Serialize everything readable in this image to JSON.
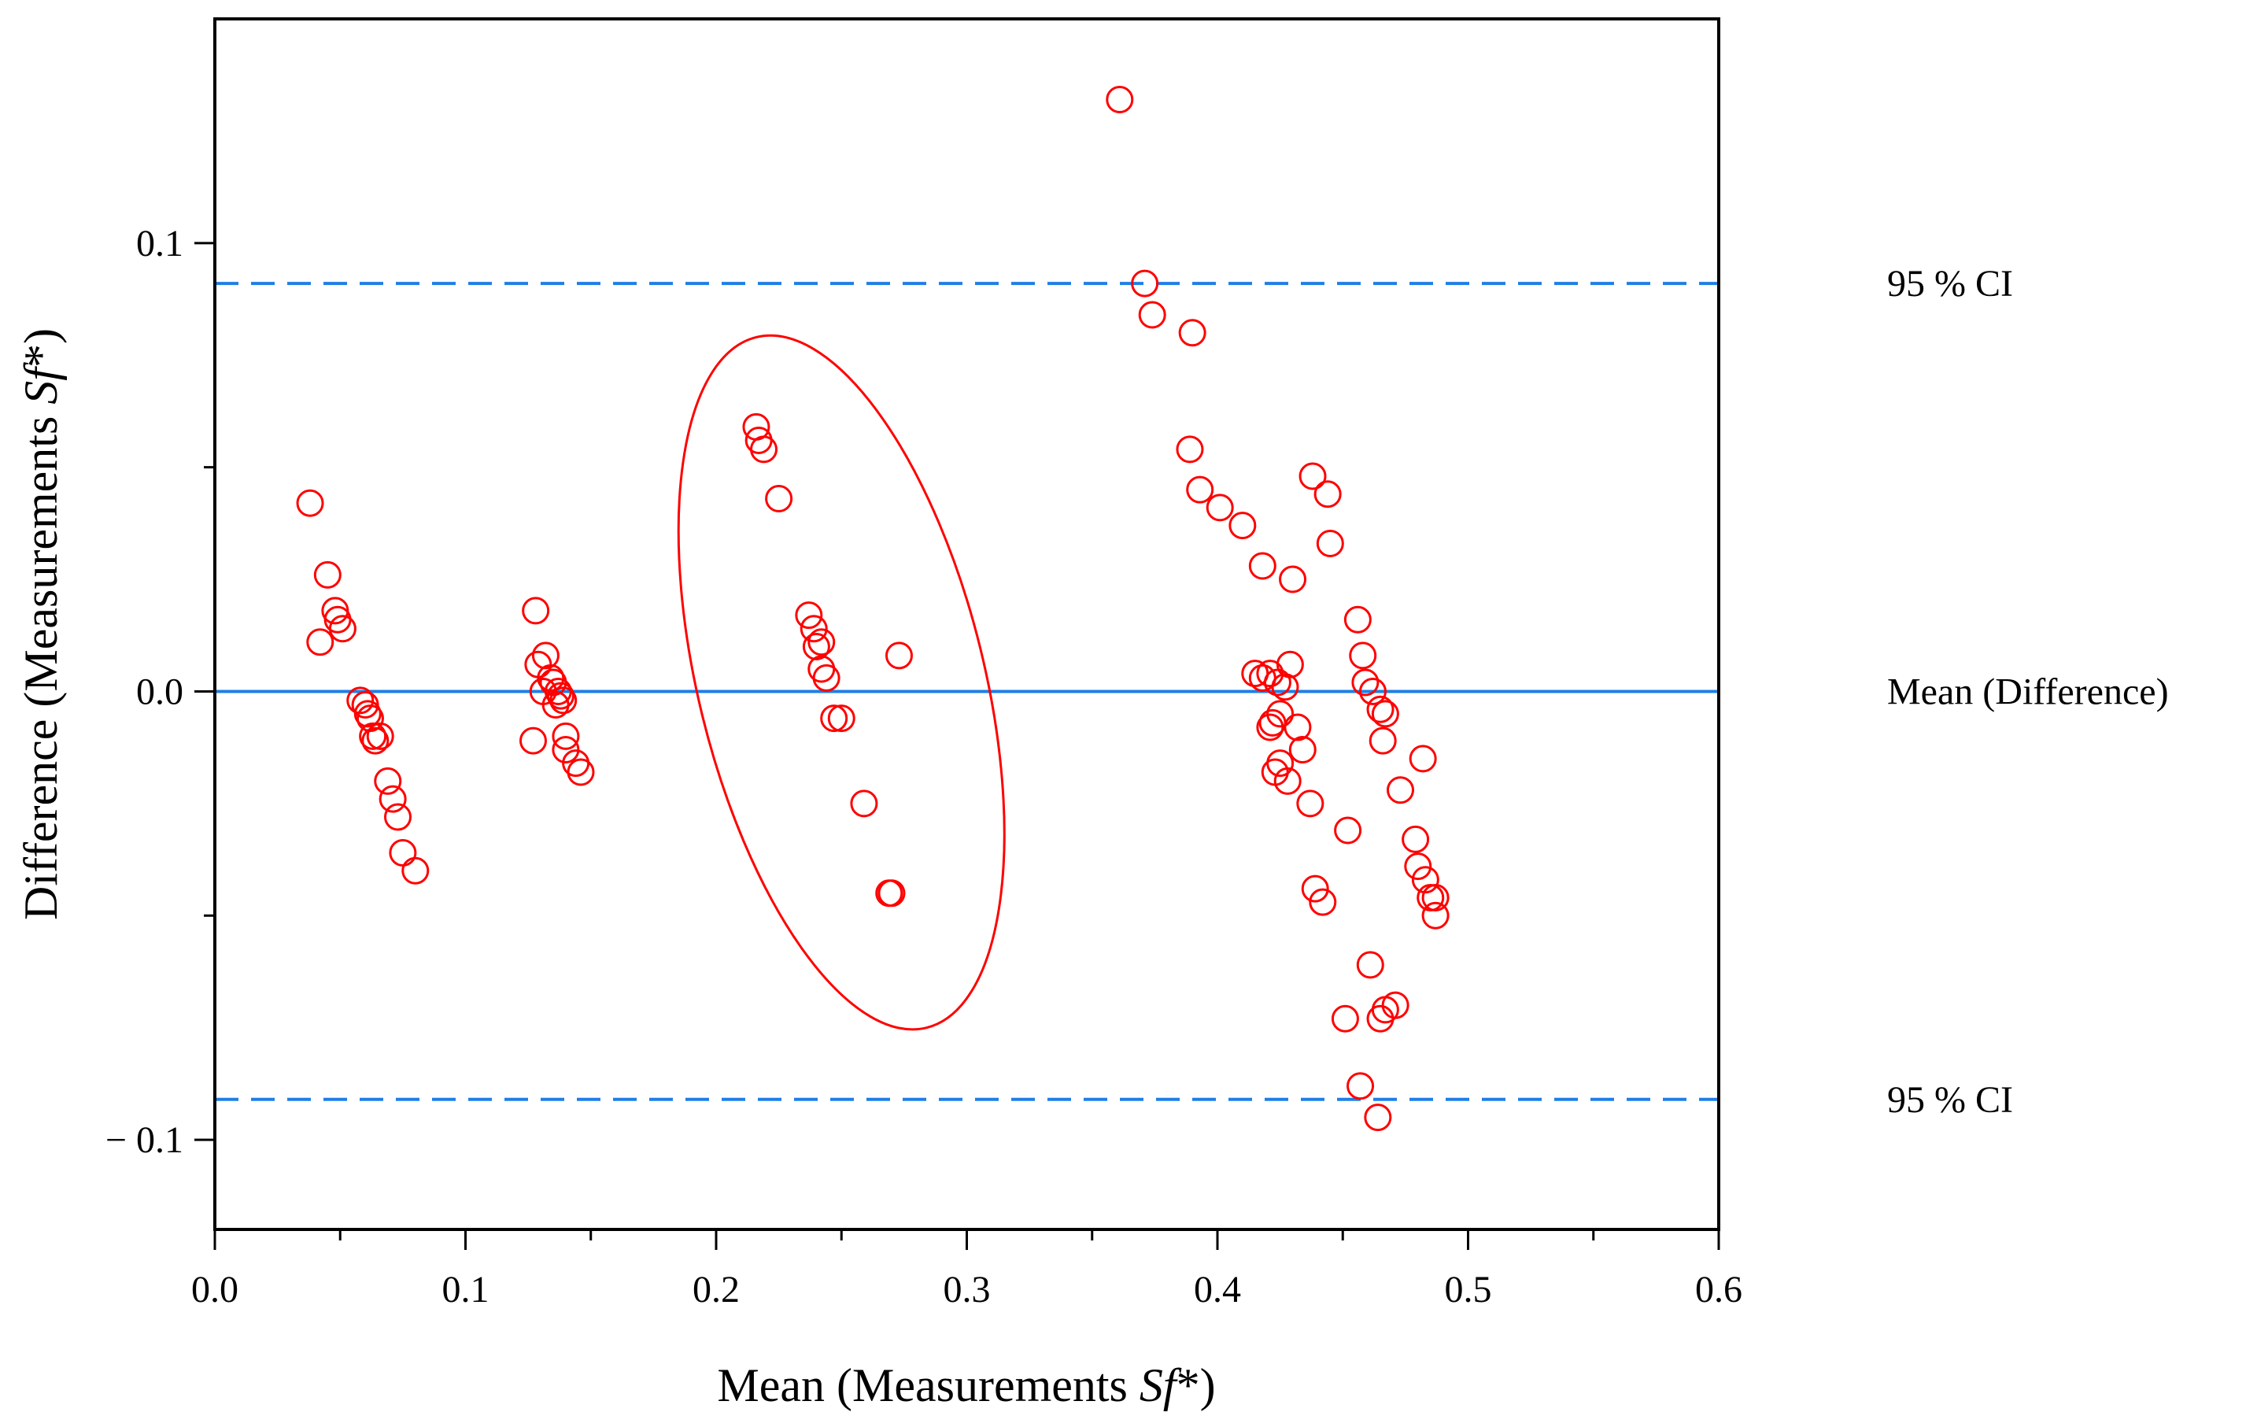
{
  "chart_data": {
    "type": "scatter",
    "title": "",
    "xlabel_prefix": "Mean (Measurements ",
    "xlabel_italic": "Sf",
    "xlabel_suffix": "*)",
    "ylabel_prefix": "Difference (Measurements ",
    "ylabel_italic": "Sf",
    "ylabel_suffix": "*)",
    "xlim": [
      0.0,
      0.6
    ],
    "ylim": [
      -0.12,
      0.15
    ],
    "x_ticks": [
      0.0,
      0.1,
      0.2,
      0.3,
      0.4,
      0.5,
      0.6
    ],
    "x_tick_labels": [
      "0.0",
      "0.1",
      "0.2",
      "0.3",
      "0.4",
      "0.5",
      "0.6"
    ],
    "y_ticks": [
      -0.1,
      0.0,
      0.1
    ],
    "y_tick_labels": [
      "− 0.1",
      "0.0",
      "0.1"
    ],
    "reference_lines": [
      {
        "name": "upper-ci",
        "y": 0.091,
        "style": "dashed",
        "label": "95 % CI"
      },
      {
        "name": "mean",
        "y": 0.0,
        "style": "solid",
        "label": "Mean (Difference)"
      },
      {
        "name": "lower-ci",
        "y": -0.091,
        "style": "dashed",
        "label": "95 % CI"
      }
    ],
    "ellipse_annotation": {
      "center": [
        0.25,
        0.002
      ],
      "points": [
        [
          0.216,
          0.079
        ],
        [
          0.284,
          -0.075
        ],
        [
          0.193,
          -0.002
        ],
        [
          0.307,
          0.006
        ]
      ]
    },
    "series": [
      {
        "name": "differences",
        "marker": "open-circle",
        "color": "#ff0000",
        "points": [
          [
            0.038,
            0.042
          ],
          [
            0.042,
            0.011
          ],
          [
            0.045,
            0.026
          ],
          [
            0.048,
            0.018
          ],
          [
            0.049,
            0.016
          ],
          [
            0.051,
            0.014
          ],
          [
            0.058,
            -0.002
          ],
          [
            0.06,
            -0.003
          ],
          [
            0.061,
            -0.005
          ],
          [
            0.062,
            -0.006
          ],
          [
            0.063,
            -0.01
          ],
          [
            0.064,
            -0.011
          ],
          [
            0.066,
            -0.01
          ],
          [
            0.069,
            -0.02
          ],
          [
            0.071,
            -0.024
          ],
          [
            0.073,
            -0.028
          ],
          [
            0.075,
            -0.036
          ],
          [
            0.08,
            -0.04
          ],
          [
            0.127,
            -0.011
          ],
          [
            0.128,
            0.018
          ],
          [
            0.129,
            0.006
          ],
          [
            0.131,
            0.0
          ],
          [
            0.132,
            0.008
          ],
          [
            0.134,
            0.003
          ],
          [
            0.135,
            0.002
          ],
          [
            0.137,
            0.0
          ],
          [
            0.138,
            -0.001
          ],
          [
            0.139,
            -0.002
          ],
          [
            0.14,
            -0.01
          ],
          [
            0.14,
            -0.013
          ],
          [
            0.144,
            -0.016
          ],
          [
            0.146,
            -0.018
          ],
          [
            0.136,
            -0.003
          ],
          [
            0.216,
            0.059
          ],
          [
            0.217,
            0.056
          ],
          [
            0.219,
            0.054
          ],
          [
            0.225,
            0.043
          ],
          [
            0.237,
            0.017
          ],
          [
            0.239,
            0.014
          ],
          [
            0.24,
            0.01
          ],
          [
            0.242,
            0.011
          ],
          [
            0.242,
            0.005
          ],
          [
            0.244,
            0.003
          ],
          [
            0.247,
            -0.006
          ],
          [
            0.25,
            -0.006
          ],
          [
            0.259,
            -0.025
          ],
          [
            0.269,
            -0.045
          ],
          [
            0.27,
            -0.045
          ],
          [
            0.273,
            0.008
          ],
          [
            0.361,
            0.132
          ],
          [
            0.371,
            0.091
          ],
          [
            0.374,
            0.084
          ],
          [
            0.389,
            0.054
          ],
          [
            0.39,
            0.08
          ],
          [
            0.393,
            0.045
          ],
          [
            0.401,
            0.041
          ],
          [
            0.41,
            0.037
          ],
          [
            0.415,
            0.004
          ],
          [
            0.418,
            0.028
          ],
          [
            0.418,
            0.003
          ],
          [
            0.421,
            -0.008
          ],
          [
            0.421,
            0.004
          ],
          [
            0.422,
            -0.007
          ],
          [
            0.423,
            -0.018
          ],
          [
            0.424,
            0.002
          ],
          [
            0.425,
            -0.005
          ],
          [
            0.425,
            -0.016
          ],
          [
            0.427,
            0.001
          ],
          [
            0.428,
            -0.02
          ],
          [
            0.429,
            0.006
          ],
          [
            0.43,
            0.025
          ],
          [
            0.432,
            -0.008
          ],
          [
            0.434,
            -0.013
          ],
          [
            0.437,
            -0.025
          ],
          [
            0.438,
            0.048
          ],
          [
            0.439,
            -0.044
          ],
          [
            0.442,
            -0.047
          ],
          [
            0.444,
            0.044
          ],
          [
            0.445,
            0.033
          ],
          [
            0.451,
            -0.073
          ],
          [
            0.452,
            -0.031
          ],
          [
            0.456,
            0.016
          ],
          [
            0.457,
            -0.088
          ],
          [
            0.458,
            0.008
          ],
          [
            0.459,
            0.002
          ],
          [
            0.461,
            -0.061
          ],
          [
            0.462,
            0.0
          ],
          [
            0.464,
            -0.095
          ],
          [
            0.465,
            -0.073
          ],
          [
            0.465,
            -0.004
          ],
          [
            0.466,
            -0.011
          ],
          [
            0.467,
            -0.071
          ],
          [
            0.467,
            -0.005
          ],
          [
            0.471,
            -0.07
          ],
          [
            0.473,
            -0.022
          ],
          [
            0.479,
            -0.033
          ],
          [
            0.48,
            -0.039
          ],
          [
            0.482,
            -0.015
          ],
          [
            0.483,
            -0.042
          ],
          [
            0.485,
            -0.046
          ],
          [
            0.487,
            -0.05
          ],
          [
            0.487,
            -0.046
          ]
        ]
      }
    ]
  },
  "colors": {
    "marker": "#ff0000",
    "ellipse": "#ff0000",
    "mean_line": "#1e7fe6",
    "ci_line": "#1e7fe6",
    "axes": "#000000"
  }
}
